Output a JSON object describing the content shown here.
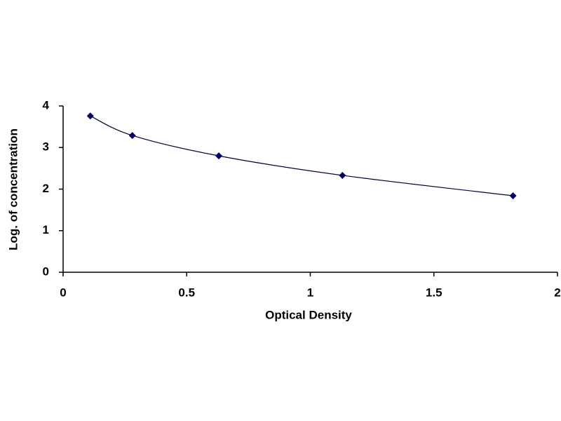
{
  "chart_data": {
    "type": "scatter",
    "x_label": "Optical Density",
    "y_label": "Log. of concentration",
    "x": [
      0.11,
      0.28,
      0.63,
      1.13,
      1.82
    ],
    "values": [
      3.76,
      3.29,
      2.8,
      2.33,
      1.84
    ],
    "color": "#000066",
    "line_color": "#000033",
    "smooth_line": true,
    "xlim": [
      0,
      2
    ],
    "xticks": [
      0,
      0.5,
      1,
      1.5,
      2
    ],
    "ylim": [
      0,
      4
    ],
    "yticks": [
      0,
      1,
      2,
      3,
      4
    ],
    "grid": false
  }
}
